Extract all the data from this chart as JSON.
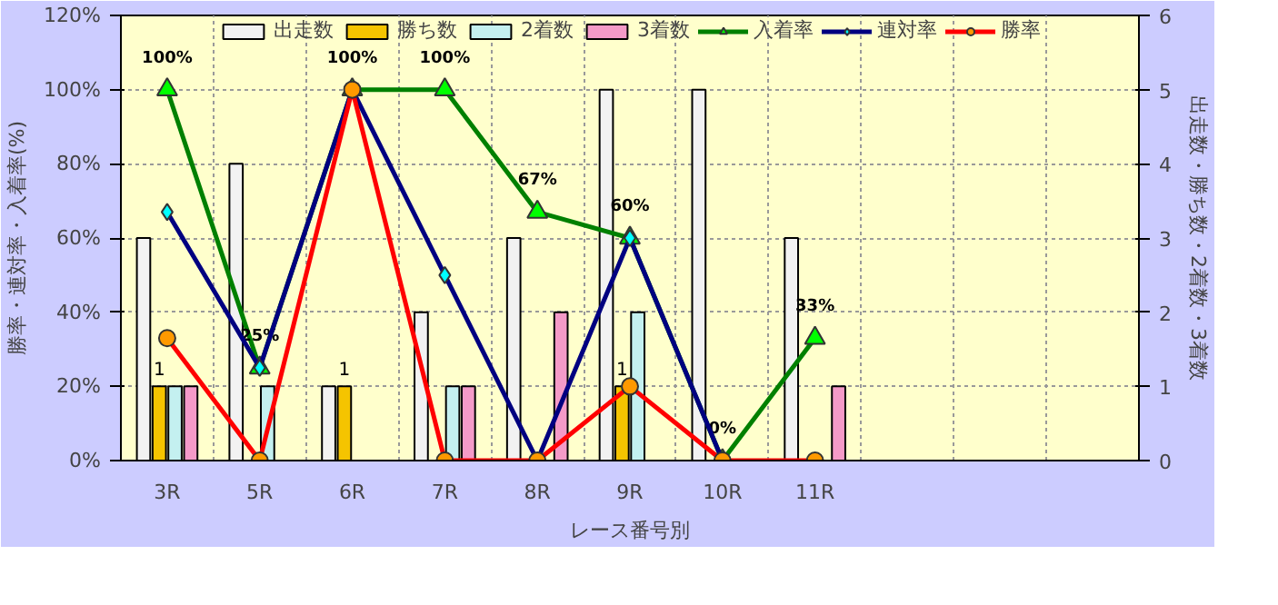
{
  "chart_data": {
    "type": "bar",
    "xlabel": "レース番号別",
    "ylabel": "勝率・連対率・入着率(%)",
    "y2label": "出走数・勝ち数・2着数・3着数",
    "categories": [
      "3R",
      "5R",
      "6R",
      "7R",
      "8R",
      "9R",
      "10R",
      "11R",
      null,
      null,
      null
    ],
    "ylim": [
      0,
      120
    ],
    "yticks": [
      {
        "value": 0,
        "label": "0%"
      },
      {
        "value": 20,
        "label": "20%"
      },
      {
        "value": 40,
        "label": "40%"
      },
      {
        "value": 60,
        "label": "60%"
      },
      {
        "value": 80,
        "label": "80%"
      },
      {
        "value": 100,
        "label": "100%"
      },
      {
        "value": 120,
        "label": "120%"
      }
    ],
    "y2lim": [
      0,
      6
    ],
    "y2ticks": [
      0,
      1,
      2,
      3,
      4,
      5,
      6
    ],
    "grid": true,
    "legend": "top",
    "series": [
      {
        "name": "出走数",
        "axis": "y2",
        "color": "#f2f2f2",
        "values": [
          3,
          4,
          1,
          2,
          3,
          5,
          5,
          3,
          null,
          null,
          null
        ]
      },
      {
        "name": "勝ち数",
        "axis": "y2",
        "color": "#f5c400",
        "values": [
          1,
          0,
          1,
          0,
          0,
          1,
          0,
          0,
          null,
          null,
          null
        ],
        "value_labels": [
          "1",
          null,
          "1",
          null,
          null,
          "1",
          null,
          null,
          null,
          null,
          null
        ]
      },
      {
        "name": "2着数",
        "axis": "y2",
        "color": "#c4f0f0",
        "values": [
          1,
          1,
          0,
          1,
          0,
          2,
          0,
          0,
          null,
          null,
          null
        ]
      },
      {
        "name": "3着数",
        "axis": "y2",
        "color": "#f49ac8",
        "values": [
          1,
          0,
          0,
          1,
          2,
          0,
          0,
          1,
          null,
          null,
          null
        ]
      },
      {
        "name": "入着率",
        "type": "line",
        "marker": "triangle",
        "color": "#008000",
        "values": [
          100,
          25,
          100,
          100,
          67,
          60,
          0,
          33,
          null,
          null,
          null
        ],
        "value_labels": [
          "100%",
          "25%",
          "100%",
          "100%",
          "67%",
          "60%",
          "0%",
          "33%",
          null,
          null,
          null
        ]
      },
      {
        "name": "連対率",
        "type": "line",
        "marker": "diamond",
        "color": "#000080",
        "values": [
          67,
          25,
          100,
          50,
          0,
          60,
          0,
          null,
          null,
          null,
          null
        ]
      },
      {
        "name": "勝率",
        "type": "line",
        "marker": "circle",
        "color": "#ff0000",
        "values": [
          33,
          0,
          100,
          0,
          0,
          20,
          0,
          0,
          null,
          null,
          null
        ]
      }
    ]
  }
}
